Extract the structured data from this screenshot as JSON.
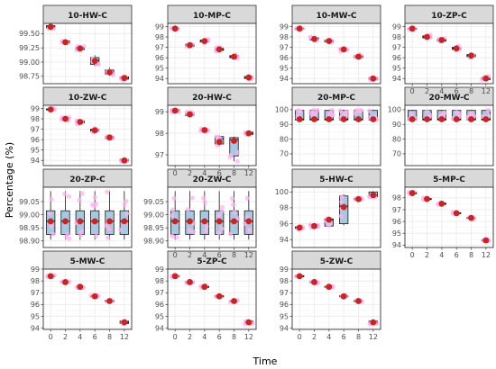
{
  "figure": {
    "xlabel": "Time",
    "ylabel": "Percentage (%)"
  },
  "colors": {
    "strip_fill": "#d9d9d9",
    "strip_stroke": "#333333",
    "panel_stroke": "#333333",
    "grid_major": "#ebebeb",
    "grid_minor": "#f5f5f5",
    "box_fill": "#a6c8e0",
    "box_stroke": "#1a1a1a",
    "jitter_point": "#ffb3f0",
    "mean_point": "#cc2222"
  },
  "chart_data": {
    "type": "box",
    "x_categories": [
      "0",
      "2",
      "4",
      "6",
      "8",
      "12"
    ],
    "panels": [
      {
        "title": "10-HW-C",
        "ylim": [
          98.62,
          99.68
        ],
        "yticks": [
          "98.75",
          "99.00",
          "99.25",
          "99.50"
        ],
        "boxes": [
          [
            99.58,
            99.6,
            99.62,
            99.64,
            99.66
          ],
          [
            99.31,
            99.33,
            99.35,
            99.37,
            99.39
          ],
          [
            99.2,
            99.22,
            99.24,
            99.26,
            99.28
          ],
          [
            98.93,
            98.96,
            99.03,
            99.08,
            99.12
          ],
          [
            98.76,
            98.79,
            98.81,
            98.86,
            98.9
          ],
          [
            98.68,
            98.7,
            98.72,
            98.74,
            98.76
          ]
        ],
        "means": [
          99.62,
          99.35,
          99.24,
          99.02,
          98.82,
          98.72
        ]
      },
      {
        "title": "10-MP-C",
        "ylim": [
          93.5,
          99.3
        ],
        "yticks": [
          "94",
          "95",
          "96",
          "97",
          "98",
          "99"
        ],
        "boxes": [
          [
            98.7,
            98.75,
            98.8,
            98.85,
            98.9
          ],
          [
            97.0,
            97.1,
            97.2,
            97.3,
            97.4
          ],
          [
            97.4,
            97.5,
            97.6,
            97.7,
            97.8
          ],
          [
            96.6,
            96.7,
            96.8,
            96.9,
            97.0
          ],
          [
            95.9,
            96.0,
            96.1,
            96.2,
            96.3
          ],
          [
            93.9,
            94.0,
            94.1,
            94.2,
            94.3
          ]
        ],
        "means": [
          98.8,
          97.2,
          97.6,
          96.8,
          96.1,
          94.1
        ]
      },
      {
        "title": "10-MW-C",
        "ylim": [
          93.5,
          99.3
        ],
        "yticks": [
          "94",
          "95",
          "96",
          "97",
          "98",
          "99"
        ],
        "boxes": [
          [
            98.7,
            98.75,
            98.8,
            98.85,
            98.9
          ],
          [
            97.6,
            97.7,
            97.8,
            97.9,
            98.0
          ],
          [
            97.4,
            97.5,
            97.6,
            97.7,
            97.8
          ],
          [
            96.6,
            96.7,
            96.8,
            96.9,
            97.0
          ],
          [
            95.9,
            96.0,
            96.1,
            96.2,
            96.3
          ],
          [
            93.8,
            93.9,
            94.0,
            94.1,
            94.2
          ]
        ],
        "means": [
          98.8,
          97.8,
          97.6,
          96.8,
          96.1,
          94.0
        ]
      },
      {
        "title": "10-ZP-C",
        "ylim": [
          93.5,
          99.3
        ],
        "yticks": [
          "94",
          "95",
          "96",
          "97",
          "98",
          "99"
        ],
        "boxes": [
          [
            98.7,
            98.75,
            98.8,
            98.85,
            98.9
          ],
          [
            97.8,
            97.9,
            98.0,
            98.1,
            98.2
          ],
          [
            97.5,
            97.6,
            97.7,
            97.8,
            97.9
          ],
          [
            96.7,
            96.8,
            96.9,
            97.0,
            97.1
          ],
          [
            96.0,
            96.1,
            96.2,
            96.3,
            96.4
          ],
          [
            93.8,
            93.9,
            94.0,
            94.1,
            94.2
          ]
        ],
        "means": [
          98.8,
          98.0,
          97.7,
          96.9,
          96.2,
          94.0
        ]
      },
      {
        "title": "10-ZW-C",
        "ylim": [
          93.5,
          99.3
        ],
        "yticks": [
          "94",
          "95",
          "96",
          "97",
          "98",
          "99"
        ],
        "boxes": [
          [
            98.8,
            98.85,
            98.9,
            98.95,
            99.0
          ],
          [
            97.8,
            97.9,
            98.0,
            98.1,
            98.2
          ],
          [
            97.5,
            97.6,
            97.7,
            97.8,
            97.9
          ],
          [
            96.7,
            96.8,
            96.9,
            97.0,
            97.1
          ],
          [
            96.0,
            96.1,
            96.2,
            96.3,
            96.4
          ],
          [
            93.8,
            93.9,
            94.0,
            94.1,
            94.2
          ]
        ],
        "means": [
          98.9,
          98.0,
          97.7,
          96.9,
          96.2,
          94.0
        ]
      },
      {
        "title": "20-HW-C",
        "ylim": [
          96.5,
          99.3
        ],
        "yticks": [
          "97",
          "98",
          "99"
        ],
        "boxes": [
          [
            98.95,
            99.0,
            99.05,
            99.1,
            99.15
          ],
          [
            98.75,
            98.82,
            98.88,
            98.94,
            99.0
          ],
          [
            98.05,
            98.1,
            98.15,
            98.2,
            98.25
          ],
          [
            97.4,
            97.5,
            97.75,
            97.85,
            97.9
          ],
          [
            96.7,
            96.95,
            97.7,
            97.8,
            97.85
          ],
          [
            97.9,
            97.95,
            98.0,
            98.05,
            98.1
          ]
        ],
        "means": [
          99.05,
          98.88,
          98.15,
          97.6,
          97.65,
          98.0
        ]
      },
      {
        "title": "20-MP-C",
        "ylim": [
          62,
          103
        ],
        "yticks": [
          "70",
          "80",
          "90",
          "100"
        ],
        "boxes": [
          [
            93.0,
            93.0,
            93.5,
            99.5,
            99.8
          ],
          [
            93.0,
            93.0,
            93.5,
            99.5,
            99.8
          ],
          [
            93.0,
            93.0,
            93.5,
            99.5,
            99.8
          ],
          [
            93.0,
            93.0,
            93.5,
            99.5,
            99.8
          ],
          [
            93.0,
            93.0,
            93.5,
            99.5,
            99.8
          ],
          [
            93.0,
            93.0,
            93.5,
            99.5,
            99.8
          ]
        ],
        "means": [
          93.5,
          93.5,
          93.5,
          93.5,
          93.5,
          93.5
        ]
      },
      {
        "title": "20-MW-C",
        "ylim": [
          62,
          103
        ],
        "yticks": [
          "70",
          "80",
          "90",
          "100"
        ],
        "boxes": [
          [
            93.0,
            93.0,
            93.5,
            99.5,
            99.8
          ],
          [
            93.0,
            93.0,
            93.5,
            99.5,
            99.8
          ],
          [
            93.0,
            93.0,
            93.5,
            99.5,
            99.8
          ],
          [
            93.0,
            93.0,
            93.5,
            99.5,
            99.8
          ],
          [
            93.0,
            93.0,
            93.5,
            99.5,
            99.8
          ],
          [
            93.0,
            93.0,
            93.5,
            99.5,
            99.8
          ]
        ],
        "means": [
          93.5,
          93.5,
          93.5,
          93.5,
          93.5,
          93.5
        ]
      },
      {
        "title": "20-ZP-C",
        "ylim": [
          98.875,
          99.105
        ],
        "yticks": [
          "98.90",
          "98.95",
          "99.00",
          "99.05"
        ],
        "boxes": [
          [
            98.905,
            98.925,
            98.975,
            99.015,
            99.09
          ],
          [
            98.905,
            98.925,
            98.975,
            99.015,
            99.09
          ],
          [
            98.905,
            98.925,
            98.975,
            99.015,
            99.09
          ],
          [
            98.905,
            98.925,
            98.975,
            99.015,
            99.09
          ],
          [
            98.905,
            98.925,
            98.975,
            99.015,
            99.09
          ],
          [
            98.905,
            98.925,
            98.975,
            99.015,
            99.09
          ]
        ],
        "means": [
          98.975,
          98.975,
          98.975,
          98.975,
          98.975,
          98.975
        ]
      },
      {
        "title": "20-ZW-C",
        "ylim": [
          98.875,
          99.105
        ],
        "yticks": [
          "98.90",
          "98.95",
          "99.00",
          "99.05"
        ],
        "boxes": [
          [
            98.905,
            98.925,
            98.975,
            99.015,
            99.09
          ],
          [
            98.905,
            98.925,
            98.975,
            99.015,
            99.09
          ],
          [
            98.905,
            98.925,
            98.975,
            99.015,
            99.09
          ],
          [
            98.905,
            98.925,
            98.975,
            99.015,
            99.09
          ],
          [
            98.905,
            98.925,
            98.975,
            99.015,
            99.09
          ],
          [
            98.905,
            98.925,
            98.975,
            99.015,
            99.09
          ]
        ],
        "means": [
          98.975,
          98.975,
          98.975,
          98.975,
          98.975,
          98.975
        ]
      },
      {
        "title": "5-HW-C",
        "ylim": [
          93.0,
          100.6
        ],
        "yticks": [
          "94",
          "96",
          "98",
          "100"
        ],
        "boxes": [
          [
            95.3,
            95.4,
            95.5,
            95.6,
            95.7
          ],
          [
            95.4,
            95.5,
            95.7,
            95.9,
            96.0
          ],
          [
            95.6,
            95.7,
            96.5,
            96.6,
            96.7
          ],
          [
            95.8,
            96.0,
            98.2,
            99.5,
            99.7
          ],
          [
            99.0,
            99.0,
            99.1,
            99.2,
            99.3
          ],
          [
            99.2,
            99.4,
            99.6,
            100.0,
            100.1
          ]
        ],
        "means": [
          95.5,
          95.7,
          96.5,
          98.1,
          99.1,
          99.6
        ]
      },
      {
        "title": "5-MP-C",
        "ylim": [
          93.8,
          98.9
        ],
        "yticks": [
          "94",
          "95",
          "96",
          "97",
          "98"
        ],
        "boxes": [
          [
            98.3,
            98.35,
            98.4,
            98.45,
            98.5
          ],
          [
            97.8,
            97.85,
            97.9,
            97.95,
            98.0
          ],
          [
            97.4,
            97.45,
            97.5,
            97.55,
            97.6
          ],
          [
            96.6,
            96.65,
            96.7,
            96.75,
            96.8
          ],
          [
            96.2,
            96.25,
            96.3,
            96.35,
            96.4
          ],
          [
            94.3,
            94.35,
            94.4,
            94.45,
            94.5
          ]
        ],
        "means": [
          98.4,
          97.9,
          97.5,
          96.7,
          96.3,
          94.4
        ]
      },
      {
        "title": "5-MW-C",
        "ylim": [
          93.9,
          99.0
        ],
        "yticks": [
          "94",
          "95",
          "96",
          "97",
          "98",
          "99"
        ],
        "boxes": [
          [
            98.3,
            98.35,
            98.4,
            98.45,
            98.5
          ],
          [
            97.8,
            97.85,
            97.9,
            97.95,
            98.0
          ],
          [
            97.4,
            97.45,
            97.5,
            97.55,
            97.6
          ],
          [
            96.6,
            96.65,
            96.7,
            96.75,
            96.8
          ],
          [
            96.2,
            96.25,
            96.3,
            96.35,
            96.4
          ],
          [
            94.3,
            94.4,
            94.5,
            94.6,
            94.7
          ]
        ],
        "means": [
          98.4,
          97.9,
          97.5,
          96.7,
          96.3,
          94.5
        ]
      },
      {
        "title": "5-ZP-C",
        "ylim": [
          93.9,
          99.0
        ],
        "yticks": [
          "94",
          "95",
          "96",
          "97",
          "98",
          "99"
        ],
        "boxes": [
          [
            98.3,
            98.35,
            98.4,
            98.45,
            98.5
          ],
          [
            97.8,
            97.85,
            97.9,
            97.95,
            98.0
          ],
          [
            97.4,
            97.45,
            97.5,
            97.55,
            97.6
          ],
          [
            96.6,
            96.65,
            96.7,
            96.75,
            96.8
          ],
          [
            96.2,
            96.25,
            96.3,
            96.35,
            96.4
          ],
          [
            94.3,
            94.4,
            94.5,
            94.6,
            94.7
          ]
        ],
        "means": [
          98.4,
          97.9,
          97.5,
          96.7,
          96.3,
          94.5
        ]
      },
      {
        "title": "5-ZW-C",
        "ylim": [
          93.9,
          99.0
        ],
        "yticks": [
          "94",
          "95",
          "96",
          "97",
          "98",
          "99"
        ],
        "boxes": [
          [
            98.3,
            98.35,
            98.4,
            98.45,
            98.5
          ],
          [
            97.8,
            97.85,
            97.9,
            97.95,
            98.0
          ],
          [
            97.4,
            97.45,
            97.5,
            97.55,
            97.6
          ],
          [
            96.6,
            96.65,
            96.7,
            96.75,
            96.8
          ],
          [
            96.2,
            96.25,
            96.3,
            96.35,
            96.4
          ],
          [
            94.3,
            94.4,
            94.5,
            94.6,
            94.7
          ]
        ],
        "means": [
          98.4,
          97.9,
          97.5,
          96.7,
          96.3,
          94.5
        ]
      }
    ]
  }
}
